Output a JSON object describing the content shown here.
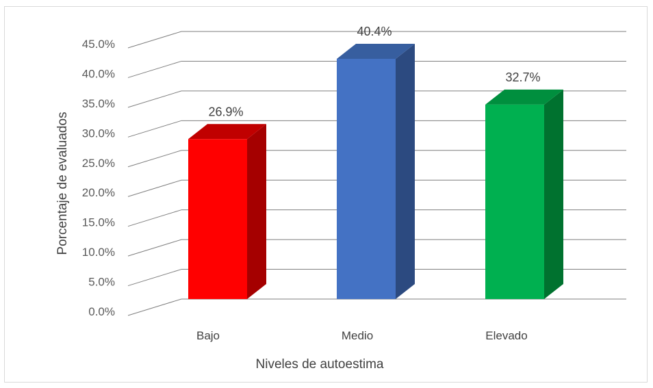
{
  "chart_data": {
    "type": "bar",
    "style": "3d-column",
    "title": "",
    "xlabel": "Niveles de autoestima",
    "ylabel": "Porcentaje de evaluados",
    "categories": [
      "Bajo",
      "Medio",
      "Elevado"
    ],
    "values": [
      26.9,
      40.4,
      32.7
    ],
    "data_labels": [
      "26.9%",
      "40.4%",
      "32.7%"
    ],
    "ylim": [
      0,
      45
    ],
    "y_ticks": [
      "0.0%",
      "5.0%",
      "10.0%",
      "15.0%",
      "20.0%",
      "25.0%",
      "30.0%",
      "35.0%",
      "40.0%",
      "45.0%"
    ],
    "grid": true,
    "legend": "none",
    "colors": {
      "front": [
        "#ff0000",
        "#4472c4",
        "#00b050"
      ],
      "side": [
        "#a50000",
        "#2c4a80",
        "#00722f"
      ],
      "top": [
        "#c00000",
        "#375e9f",
        "#008f3e"
      ],
      "grid": "#7f7f7f",
      "frame": "#d9d9d9"
    }
  }
}
